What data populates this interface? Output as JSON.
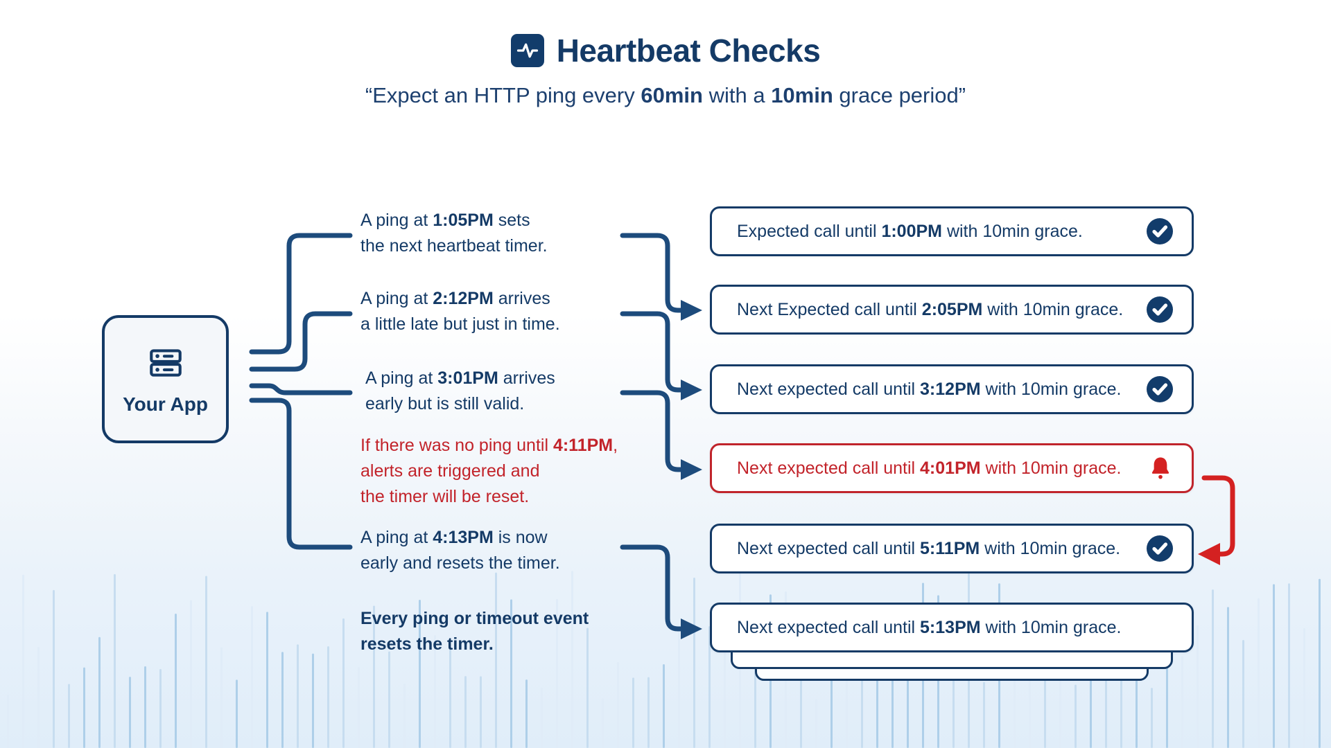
{
  "header": {
    "title": "Heartbeat Checks",
    "title_icon": "activity-pulse-icon",
    "subtitle": [
      {
        "text": "“Expect an HTTP ping every "
      },
      {
        "text": "60min",
        "bold": true
      },
      {
        "text": " with a "
      },
      {
        "text": "10min",
        "bold": true
      },
      {
        "text": " grace period”"
      }
    ]
  },
  "app": {
    "label": "Your App",
    "icon": "server-icon"
  },
  "annotations": [
    {
      "style": "normal",
      "segments": [
        {
          "text": "A ping at "
        },
        {
          "text": "1:05PM",
          "bold": true
        },
        {
          "text": " sets\nthe next heartbeat timer."
        }
      ]
    },
    {
      "style": "normal",
      "segments": [
        {
          "text": "A ping at "
        },
        {
          "text": "2:12PM",
          "bold": true
        },
        {
          "text": " arrives\na little late but just in time."
        }
      ]
    },
    {
      "style": "normal",
      "segments": [
        {
          "text": "A ping at "
        },
        {
          "text": "3:01PM",
          "bold": true
        },
        {
          "text": " arrives\nearly but is still valid."
        }
      ]
    },
    {
      "style": "alert",
      "segments": [
        {
          "text": "If there was no ping until "
        },
        {
          "text": "4:11PM",
          "bold": true
        },
        {
          "text": ",\nalerts are triggered and\nthe timer will be reset."
        }
      ]
    },
    {
      "style": "normal",
      "segments": [
        {
          "text": "A ping at "
        },
        {
          "text": "4:13PM",
          "bold": true
        },
        {
          "text": " is now\nearly and resets the timer."
        }
      ]
    },
    {
      "style": "emphasis",
      "segments": [
        {
          "text": "Every ping or timeout event\nresets the timer."
        }
      ]
    }
  ],
  "boxes": [
    {
      "variant": "ok",
      "icon": "check-circle-icon",
      "segments": [
        {
          "text": "Expected call until "
        },
        {
          "text": "1:00PM",
          "bold": true
        },
        {
          "text": " with 10min grace."
        }
      ]
    },
    {
      "variant": "ok",
      "icon": "check-circle-icon",
      "segments": [
        {
          "text": "Next Expected call until "
        },
        {
          "text": "2:05PM",
          "bold": true
        },
        {
          "text": " with 10min grace."
        }
      ]
    },
    {
      "variant": "ok",
      "icon": "check-circle-icon",
      "segments": [
        {
          "text": "Next expected call until "
        },
        {
          "text": "3:12PM",
          "bold": true
        },
        {
          "text": " with 10min grace."
        }
      ]
    },
    {
      "variant": "alert",
      "icon": "bell-icon",
      "segments": [
        {
          "text": "Next expected call until "
        },
        {
          "text": "4:01PM",
          "bold": true
        },
        {
          "text": " with 10min grace."
        }
      ]
    },
    {
      "variant": "ok",
      "icon": "check-circle-icon",
      "segments": [
        {
          "text": "Next expected call until "
        },
        {
          "text": "5:11PM",
          "bold": true
        },
        {
          "text": " with 10min grace."
        }
      ]
    },
    {
      "variant": "plain",
      "icon": null,
      "segments": [
        {
          "text": "Next expected call until "
        },
        {
          "text": "5:13PM",
          "bold": true
        },
        {
          "text": " with 10min grace."
        }
      ]
    }
  ],
  "colors": {
    "navy_text": "#143A66",
    "navy_line": "#1D4B7C",
    "red_text": "#C2232A",
    "red_line": "#D42121",
    "box_border_navy": "#143A66",
    "box_border_red": "#C0242B",
    "check_fill": "#123C6B"
  },
  "background": {
    "wave_bar_colors": [
      "#aecfe9",
      "#c7ddf0",
      "#e0ecf8"
    ]
  }
}
